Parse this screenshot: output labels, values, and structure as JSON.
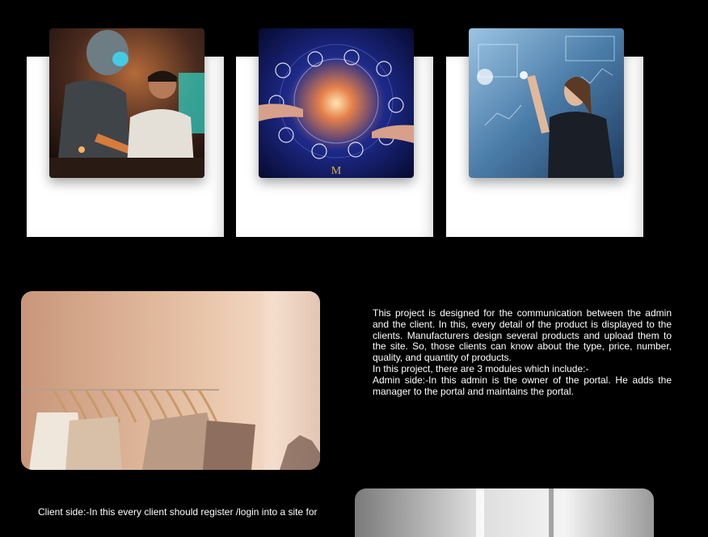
{
  "gallery": {
    "cards": [
      {
        "image": "robot-and-man-at-computer"
      },
      {
        "image": "digital-network-globe"
      },
      {
        "image": "woman-touching-holographic-interface"
      }
    ]
  },
  "project": {
    "image": "clothes-rack-with-hangers",
    "paragraphs": [
      "This project is designed for the communication between the admin and the client. In this, every detail of the product is displayed to the clients. Manufacturers design several products and upload them to the site. So, those clients can know about the type, price, number, quality, and quantity of products.",
      "In this project, there are 3 modules which include:-",
      "Admin side:-In this admin is the owner of the portal. He adds the manager to the portal and maintains the portal."
    ]
  },
  "bottom": {
    "text": "Client side:-In this every client should register /login into a site for",
    "image": "bright-interior-room"
  },
  "colors": {
    "background": "#000000",
    "card": "#ffffff",
    "text": "#ffffff"
  }
}
